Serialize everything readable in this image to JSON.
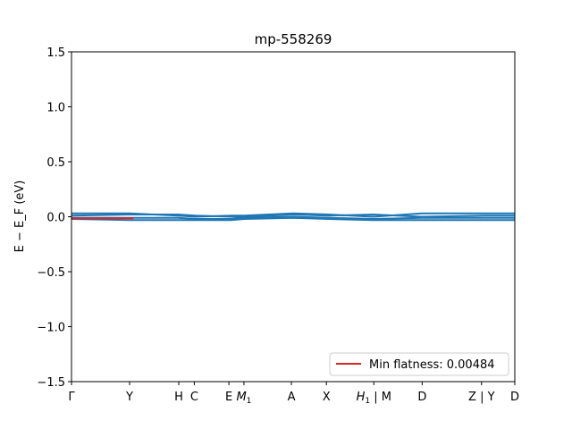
{
  "chart_data": {
    "type": "line",
    "title": "mp-558269",
    "xlabel": "",
    "ylabel": "E − E_F (eV)",
    "ylim": [
      -1.5,
      1.5
    ],
    "yticks": [
      1.5,
      1.0,
      0.5,
      0.0,
      -0.5,
      -1.0,
      -1.5
    ],
    "ytick_labels": [
      "1.5",
      "1.0",
      "0.5",
      "0.0",
      "−0.5",
      "−1.0",
      "−1.5"
    ],
    "xlim": [
      0,
      1
    ],
    "kpoints": [
      {
        "label": "Γ",
        "x": 0.0
      },
      {
        "label": "Y",
        "x": 0.131
      },
      {
        "label": "H",
        "x": 0.242
      },
      {
        "label": "C",
        "x": 0.277
      },
      {
        "label": "E",
        "x": 0.355
      },
      {
        "label": "M",
        "x": 0.389,
        "sub": "1"
      },
      {
        "label": "A",
        "x": 0.496
      },
      {
        "label": "X",
        "x": 0.575
      },
      {
        "label": "H",
        "x": 0.682,
        "sub": "1",
        "suffix": " | M"
      },
      {
        "label": "D",
        "x": 0.791
      },
      {
        "label": "Z | Y",
        "x": 0.925
      },
      {
        "label": "D",
        "x": 1.0
      }
    ],
    "series": [
      {
        "color": "#1f77b4",
        "x": [
          0,
          0.13,
          0.24,
          0.28,
          0.36,
          0.39,
          0.5,
          0.58,
          0.68,
          0.79,
          0.93,
          1.0
        ],
        "y": [
          0.03,
          0.03,
          0.01,
          0.0,
          0.01,
          0.01,
          0.03,
          0.02,
          0.0,
          0.03,
          0.03,
          0.03
        ]
      },
      {
        "color": "#1f77b4",
        "x": [
          0,
          0.13,
          0.24,
          0.28,
          0.36,
          0.39,
          0.5,
          0.58,
          0.68,
          0.79,
          0.93,
          1.0
        ],
        "y": [
          0.01,
          0.02,
          0.02,
          0.01,
          0.0,
          0.0,
          0.02,
          0.01,
          0.02,
          0.0,
          0.01,
          0.01
        ]
      },
      {
        "color": "#1f77b4",
        "x": [
          0,
          0.13,
          0.24,
          0.28,
          0.36,
          0.39,
          0.5,
          0.58,
          0.68,
          0.79,
          0.93,
          1.0
        ],
        "y": [
          -0.01,
          -0.01,
          -0.01,
          -0.02,
          -0.02,
          -0.01,
          0.0,
          -0.01,
          -0.02,
          -0.01,
          -0.01,
          -0.01
        ]
      },
      {
        "color": "#1f77b4",
        "x": [
          0,
          0.13,
          0.24,
          0.28,
          0.36,
          0.39,
          0.5,
          0.58,
          0.68,
          0.79,
          0.93,
          1.0
        ],
        "y": [
          -0.02,
          -0.03,
          -0.03,
          -0.03,
          -0.03,
          -0.02,
          -0.01,
          -0.02,
          -0.03,
          -0.03,
          -0.03,
          -0.03
        ]
      }
    ],
    "flat_band": {
      "color": "#d62728",
      "x": [
        0,
        0.14
      ],
      "y": [
        -0.015,
        -0.015
      ]
    },
    "legend": {
      "label": "Min flatness: 0.00484",
      "color": "#d62728",
      "placement": "lower right"
    }
  }
}
